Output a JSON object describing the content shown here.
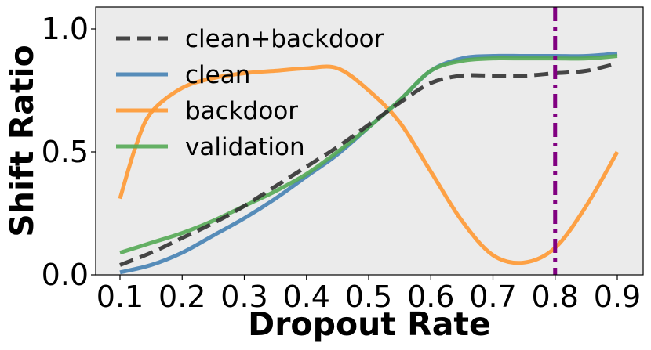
{
  "chart_data": {
    "type": "line",
    "xlabel": "Dropout Rate",
    "ylabel": "Shift Ratio",
    "xlim": [
      0.1,
      0.9
    ],
    "ylim": [
      0.0,
      1.0
    ],
    "xticks": [
      "0.1",
      "0.2",
      "0.3",
      "0.4",
      "0.5",
      "0.6",
      "0.7",
      "0.8",
      "0.9"
    ],
    "yticks": [
      "0.0",
      "0.5",
      "1.0"
    ],
    "grid": false,
    "background": "#ebebeb",
    "legend_position": "top-left",
    "vline": {
      "x": 0.8,
      "color": "#800080",
      "style": "dash-dot"
    },
    "series": [
      {
        "name": "clean+backdoor",
        "color": "#333333",
        "style": "dashed",
        "x": [
          0.1,
          0.15,
          0.2,
          0.25,
          0.3,
          0.35,
          0.4,
          0.45,
          0.5,
          0.55,
          0.6,
          0.65,
          0.7,
          0.75,
          0.8,
          0.85,
          0.9
        ],
        "y": [
          0.04,
          0.09,
          0.15,
          0.21,
          0.28,
          0.36,
          0.44,
          0.52,
          0.61,
          0.7,
          0.78,
          0.81,
          0.81,
          0.81,
          0.82,
          0.83,
          0.86
        ]
      },
      {
        "name": "clean",
        "color": "#4682b4",
        "style": "solid",
        "x": [
          0.1,
          0.15,
          0.2,
          0.25,
          0.3,
          0.35,
          0.4,
          0.45,
          0.5,
          0.55,
          0.6,
          0.65,
          0.7,
          0.75,
          0.8,
          0.85,
          0.9
        ],
        "y": [
          0.01,
          0.04,
          0.09,
          0.16,
          0.23,
          0.31,
          0.4,
          0.49,
          0.6,
          0.71,
          0.83,
          0.88,
          0.89,
          0.89,
          0.89,
          0.89,
          0.9
        ]
      },
      {
        "name": "backdoor",
        "color": "#ff9933",
        "style": "solid",
        "x": [
          0.1,
          0.125,
          0.15,
          0.2,
          0.25,
          0.3,
          0.35,
          0.4,
          0.45,
          0.5,
          0.55,
          0.6,
          0.65,
          0.7,
          0.75,
          0.8,
          0.85,
          0.9
        ],
        "y": [
          0.31,
          0.52,
          0.66,
          0.76,
          0.8,
          0.82,
          0.83,
          0.84,
          0.84,
          0.75,
          0.62,
          0.42,
          0.22,
          0.08,
          0.05,
          0.11,
          0.28,
          0.5
        ]
      },
      {
        "name": "validation",
        "color": "#55aa55",
        "style": "solid",
        "x": [
          0.1,
          0.15,
          0.2,
          0.25,
          0.3,
          0.35,
          0.4,
          0.45,
          0.5,
          0.55,
          0.6,
          0.65,
          0.7,
          0.75,
          0.8,
          0.85,
          0.9
        ],
        "y": [
          0.09,
          0.13,
          0.17,
          0.22,
          0.28,
          0.34,
          0.41,
          0.5,
          0.6,
          0.71,
          0.83,
          0.87,
          0.88,
          0.88,
          0.88,
          0.88,
          0.89
        ]
      }
    ]
  }
}
